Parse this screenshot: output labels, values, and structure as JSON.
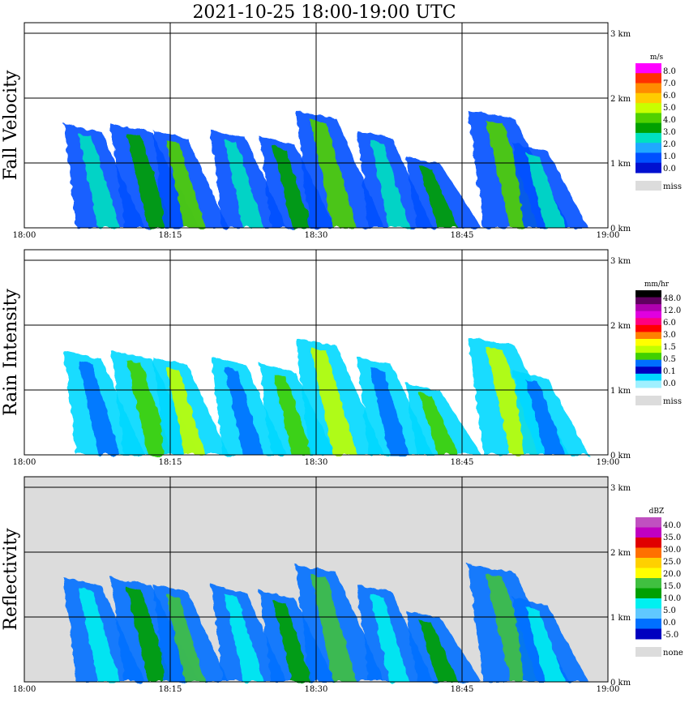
{
  "title": "2021-10-25   18:00-19:00 UTC",
  "colors": {
    "frame": "#000000",
    "miss": "#dcdcdc",
    "background": "#ffffff"
  },
  "chart_data": [
    {
      "type": "heatmap",
      "ylabel": "Fall Velocity",
      "x_ticks": [
        "18:00",
        "18:15",
        "18:30",
        "18:45",
        "19:00"
      ],
      "y_ticks": [
        "0 km",
        "1 km",
        "2 km",
        "3 km"
      ],
      "colorbar": {
        "unit": "m/s",
        "labels": [
          "8.0",
          "7.0",
          "6.0",
          "5.0",
          "4.0",
          "3.0",
          "2.0",
          "1.0",
          "0.0"
        ],
        "colors": [
          "#ff00ff",
          "#ff3000",
          "#ff8c00",
          "#ffcc00",
          "#c8ff00",
          "#50d000",
          "#00a000",
          "#00e0c0",
          "#20a8ff",
          "#0050ff",
          "#0010d0"
        ],
        "miss_label": "miss"
      }
    },
    {
      "type": "heatmap",
      "ylabel": "Rain Intensity",
      "x_ticks": [
        "18:00",
        "18:15",
        "18:30",
        "18:45",
        "19:00"
      ],
      "y_ticks": [
        "0 km",
        "1 km",
        "2 km",
        "3 km"
      ],
      "colorbar": {
        "unit": "mm/hr",
        "labels": [
          "48.0",
          "12.0",
          "6.0",
          "3.0",
          "1.5",
          "0.5",
          "0.1",
          "0.0"
        ],
        "colors": [
          "#000000",
          "#600060",
          "#b000b0",
          "#e000e0",
          "#ff0080",
          "#ff0000",
          "#ff8000",
          "#ffff00",
          "#c0ff00",
          "#40d000",
          "#0070ff",
          "#0000c0",
          "#00d8ff",
          "#a0f0ff"
        ],
        "miss_label": "miss"
      }
    },
    {
      "type": "heatmap",
      "ylabel": "Reflectivity",
      "x_ticks": [
        "18:00",
        "18:15",
        "18:30",
        "18:45",
        "19:00"
      ],
      "y_ticks": [
        "0 km",
        "1 km",
        "2 km",
        "3 km"
      ],
      "colorbar": {
        "unit": "dBZ",
        "labels": [
          "40.0",
          "35.0",
          "30.0",
          "25.0",
          "20.0",
          "15.0",
          "10.0",
          "5.0",
          "0.0",
          "-5.0"
        ],
        "colors": [
          "#c050c0",
          "#c000c0",
          "#e00000",
          "#ff7000",
          "#ffd000",
          "#ffff00",
          "#40c040",
          "#00a000",
          "#00f0f0",
          "#60c8ff",
          "#0070ff",
          "#0000c0"
        ],
        "miss_label": "none"
      }
    }
  ]
}
